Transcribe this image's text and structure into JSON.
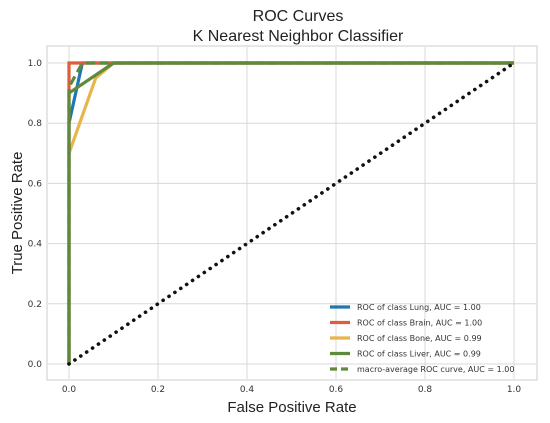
{
  "chart_data": {
    "type": "line",
    "title": "ROC Curves",
    "subtitle": "K Nearest Neighbor Classifier",
    "xlabel": "False Positive Rate",
    "ylabel": "True Positive Rate",
    "xlim": [
      0,
      1
    ],
    "ylim": [
      0,
      1
    ],
    "xticks": [
      "0.0",
      "0.2",
      "0.4",
      "0.6",
      "0.8",
      "1.0"
    ],
    "yticks": [
      "0.0",
      "0.2",
      "0.4",
      "0.6",
      "0.8",
      "1.0"
    ],
    "grid": true,
    "legend_position": "lower-right",
    "series": [
      {
        "name": "ROC of class Lung, AUC = 1.00",
        "color": "#1f77b4",
        "dash": "solid",
        "x": [
          0,
          0,
          0.03,
          1
        ],
        "y": [
          0,
          0.8,
          1,
          1
        ]
      },
      {
        "name": "ROC of class Brain, AUC = 1.00",
        "color": "#e05c3a",
        "dash": "solid",
        "x": [
          0,
          0,
          0.07,
          1
        ],
        "y": [
          0,
          1,
          1,
          1
        ]
      },
      {
        "name": "ROC of class Bone, AUC = 0.99",
        "color": "#e8b44c",
        "dash": "solid",
        "x": [
          0,
          0,
          0.06,
          0.1,
          1
        ],
        "y": [
          0,
          0.7,
          0.95,
          1,
          1
        ]
      },
      {
        "name": "ROC of class Liver, AUC = 0.99",
        "color": "#5e8a3a",
        "dash": "solid",
        "x": [
          0,
          0,
          0.1,
          1
        ],
        "y": [
          0,
          0.9,
          1,
          1
        ]
      },
      {
        "name": "macro-average ROC curve, AUC = 1.00",
        "color": "#5e8a3a",
        "dash": "dashed",
        "x": [
          0,
          0,
          0.03,
          1
        ],
        "y": [
          0,
          0.92,
          1,
          1
        ]
      }
    ],
    "reference_line": {
      "x": [
        0,
        1
      ],
      "y": [
        0,
        1
      ],
      "color": "#111111",
      "dash": "dotted"
    }
  }
}
